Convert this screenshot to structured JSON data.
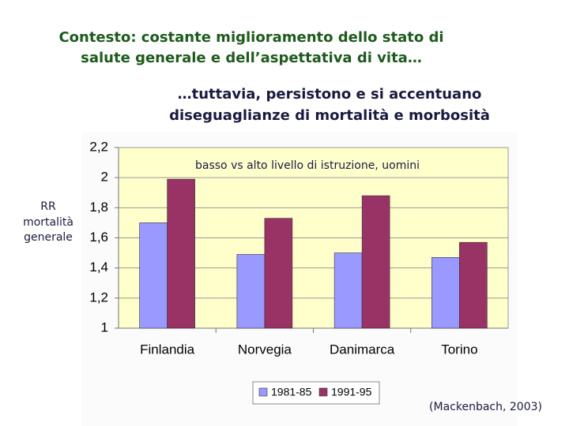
{
  "chart_data": {
    "type": "bar",
    "title": [
      "Contesto: costante miglioramento dello stato di",
      "salute generale e dell’aspettativa di vita…"
    ],
    "subtitle": [
      "…tuttavia, persistono e si accentuano",
      "diseguaglianze di mortalità e morbosità"
    ],
    "y_label": [
      "RR",
      "mortalità",
      "generale"
    ],
    "annotation": "basso vs alto livello di istruzione, uomini",
    "source": "(Mackenbach, 2003)",
    "categories": [
      "Finlandia",
      "Norvegia",
      "Danimarca",
      "Torino"
    ],
    "series": [
      {
        "name": "1981-85",
        "color": "#9999ff",
        "values": [
          1.7,
          1.49,
          1.5,
          1.47
        ]
      },
      {
        "name": "1991-95",
        "color": "#993366",
        "values": [
          1.99,
          1.73,
          1.88,
          1.57
        ]
      }
    ],
    "ylim": [
      1,
      2.2
    ],
    "yticks": [
      1,
      {
        "value": 1.2,
        "label": "1,2"
      },
      {
        "value": 1.4,
        "label": "1,4"
      },
      {
        "value": 1.6,
        "label": "1,6"
      },
      {
        "value": 1.8,
        "label": "1,8"
      },
      2,
      {
        "value": 2.2,
        "label": "2,2"
      }
    ],
    "grid": true
  }
}
